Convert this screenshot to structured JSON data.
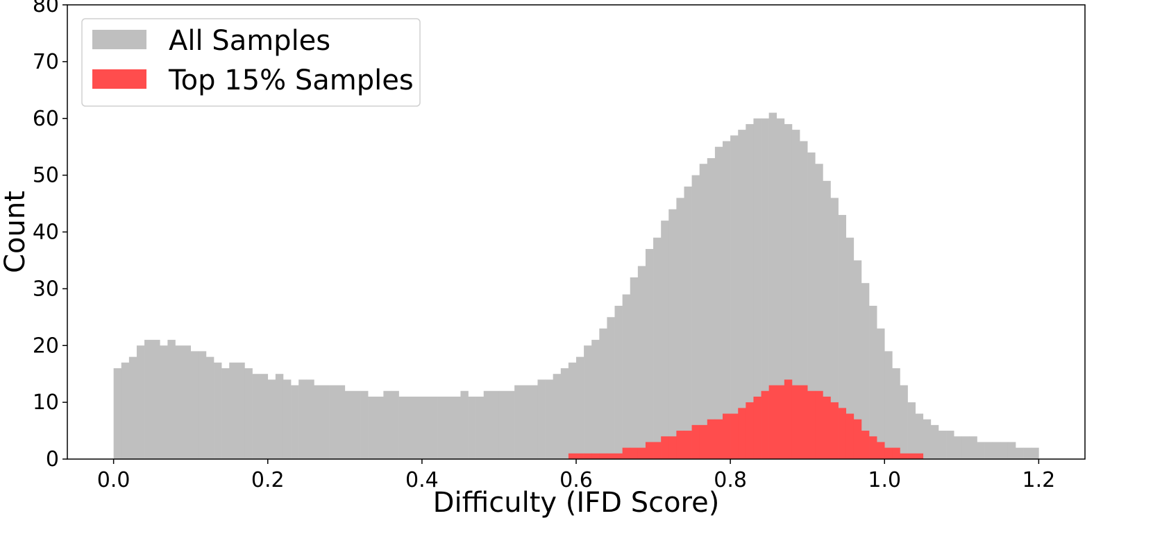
{
  "chart_data": {
    "type": "histogram",
    "xlabel": "Difficulty (IFD Score)",
    "ylabel": "Count",
    "xlim": [
      -0.06,
      1.26
    ],
    "ylim": [
      0,
      80
    ],
    "x_ticks": [
      "0.0",
      "0.2",
      "0.4",
      "0.6",
      "0.8",
      "1.0",
      "1.2"
    ],
    "x_tick_values": [
      0.0,
      0.2,
      0.4,
      0.6,
      0.8,
      1.0,
      1.2
    ],
    "y_ticks": [
      "0",
      "10",
      "20",
      "30",
      "40",
      "50",
      "60",
      "70",
      "80"
    ],
    "y_tick_values": [
      0,
      10,
      20,
      30,
      40,
      50,
      60,
      70,
      80
    ],
    "legend": {
      "position": "upper-left",
      "entries": [
        {
          "label": "All Samples",
          "color": "#bfbfbf"
        },
        {
          "label": "Top 15% Samples",
          "color": "#ff4d4d"
        }
      ]
    },
    "bin_range": [
      0.0,
      1.2
    ],
    "bin_count": 120,
    "series": [
      {
        "name": "All Samples",
        "color": "#bfbfbf",
        "values": [
          16,
          17,
          18,
          20,
          21,
          21,
          20,
          21,
          20,
          20,
          19,
          19,
          18,
          17,
          16,
          17,
          17,
          16,
          15,
          15,
          14,
          15,
          14,
          13,
          14,
          14,
          13,
          13,
          13,
          13,
          12,
          12,
          12,
          11,
          11,
          12,
          12,
          11,
          11,
          11,
          11,
          11,
          11,
          11,
          11,
          12,
          11,
          11,
          12,
          12,
          12,
          12,
          13,
          13,
          13,
          14,
          14,
          15,
          16,
          17,
          18,
          20,
          21,
          23,
          25,
          27,
          29,
          32,
          34,
          37,
          39,
          42,
          44,
          46,
          48,
          50,
          52,
          53,
          55,
          56,
          57,
          58,
          59,
          60,
          60,
          61,
          60,
          59,
          58,
          56,
          54,
          52,
          49,
          46,
          43,
          39,
          35,
          31,
          27,
          23,
          19,
          16,
          13,
          10,
          8,
          7,
          6,
          5,
          5,
          4,
          4,
          4,
          3,
          3,
          3,
          3,
          3,
          2,
          2,
          2
        ]
      },
      {
        "name": "Top 15% Samples",
        "color": "#ff4d4d",
        "values": [
          0,
          0,
          0,
          0,
          0,
          0,
          0,
          0,
          0,
          0,
          0,
          0,
          0,
          0,
          0,
          0,
          0,
          0,
          0,
          0,
          0,
          0,
          0,
          0,
          0,
          0,
          0,
          0,
          0,
          0,
          0,
          0,
          0,
          0,
          0,
          0,
          0,
          0,
          0,
          0,
          0,
          0,
          0,
          0,
          0,
          0,
          0,
          0,
          0,
          0,
          0,
          0,
          0,
          0,
          0,
          0,
          0,
          0,
          0,
          1,
          1,
          1,
          1,
          1,
          1,
          1,
          2,
          2,
          2,
          3,
          3,
          4,
          4,
          5,
          5,
          6,
          6,
          7,
          7,
          8,
          8,
          9,
          10,
          11,
          12,
          13,
          13,
          14,
          13,
          13,
          12,
          12,
          11,
          10,
          9,
          8,
          7,
          5,
          4,
          3,
          2,
          2,
          1,
          1,
          1,
          0,
          0,
          0,
          0,
          0,
          0,
          0,
          0,
          0,
          0,
          0,
          0,
          0,
          0,
          0
        ]
      }
    ]
  }
}
